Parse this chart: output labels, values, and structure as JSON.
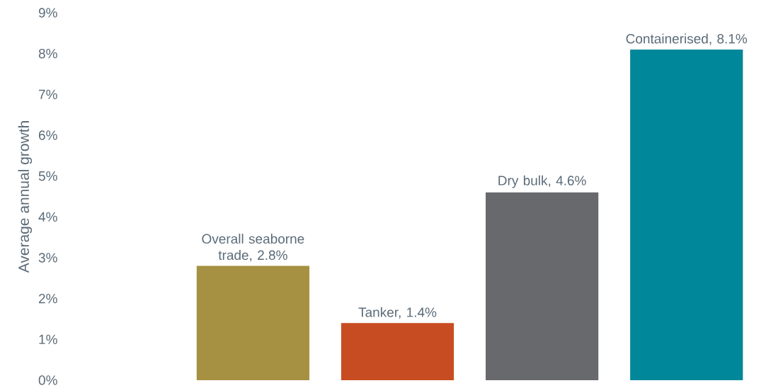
{
  "chart_data": {
    "type": "bar",
    "ylabel": "Average annual growth",
    "categories": [
      null,
      null,
      null,
      null
    ],
    "values": [
      2.8,
      1.4,
      4.6,
      8.1
    ],
    "colors": [
      "#a69142",
      "#c84c21",
      "#68696d",
      "#008799"
    ],
    "value_labels": [
      "Overall seaborne trade, 2.8%",
      "Tanker, 1.4%",
      "Dry bulk, 4.6%",
      "Containerised, 8.1%"
    ],
    "ylim": [
      0,
      9
    ],
    "yticks": [
      {
        "value": 0,
        "label": "0%"
      },
      {
        "value": 1,
        "label": "1%"
      },
      {
        "value": 2,
        "label": "2%"
      },
      {
        "value": 3,
        "label": "3%"
      },
      {
        "value": 4,
        "label": "4%"
      },
      {
        "value": 5,
        "label": "5%"
      },
      {
        "value": 6,
        "label": "6%"
      },
      {
        "value": 7,
        "label": "7%"
      },
      {
        "value": 8,
        "label": "8%"
      },
      {
        "value": 9,
        "label": "9%"
      }
    ],
    "tick_labels": "y"
  }
}
